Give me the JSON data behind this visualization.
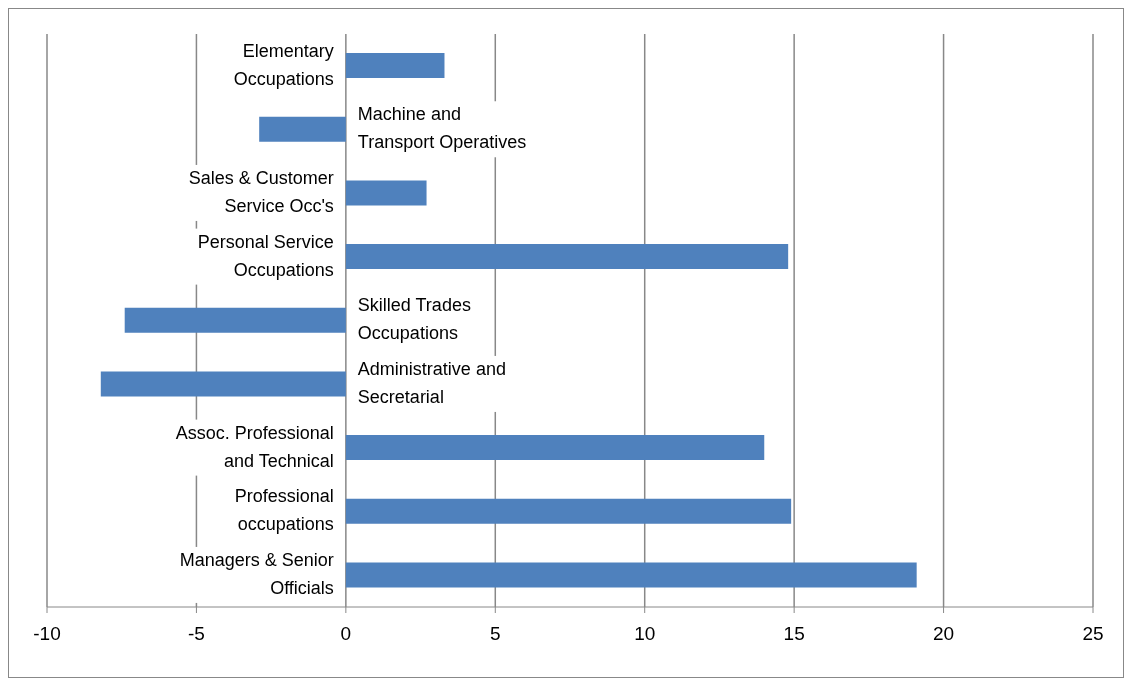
{
  "chart_data": {
    "type": "bar",
    "orientation": "horizontal",
    "categories": [
      "Elementary Occupations",
      "Machine and Transport Operatives",
      "Sales & Customer Service Occ's",
      "Personal Service Occupations",
      "Skilled Trades Occupations",
      "Administrative and Secretarial",
      "Assoc. Professional and Technical",
      "Professional occupations",
      "Managers & Senior Officials"
    ],
    "values": [
      3.3,
      -2.9,
      2.7,
      14.8,
      -7.4,
      -8.2,
      14.0,
      14.9,
      19.1
    ],
    "color": "#4f81bd",
    "xlim": [
      -10,
      25
    ],
    "xticks": [
      -10,
      -5,
      0,
      5,
      10,
      15,
      20,
      25
    ],
    "grid": "x"
  }
}
